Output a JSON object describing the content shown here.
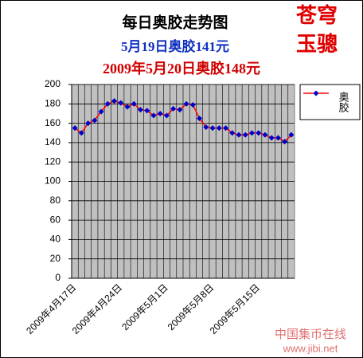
{
  "chart_data": {
    "type": "line",
    "title": "每日奥胶走势图",
    "subtitles": [
      "5月19日奥胶141元",
      "2009年5月20日奥胶148元"
    ],
    "annotations": [
      "苍穹",
      "玉骢"
    ],
    "watermark": [
      "中国集币在线",
      "www.jibi.net"
    ],
    "categories": [
      "2009年4月17日",
      null,
      null,
      null,
      null,
      null,
      null,
      "2009年4月24日",
      null,
      null,
      null,
      null,
      null,
      null,
      "2009年5月1日",
      null,
      null,
      null,
      null,
      null,
      null,
      "2009年5月8日",
      null,
      null,
      null,
      null,
      null,
      null,
      "2009年5月15日",
      null,
      null,
      null,
      null,
      null
    ],
    "series": [
      {
        "name": "奥胶",
        "color": "#ff0000",
        "marker_color": "#0000cc",
        "values": [
          155,
          150,
          160,
          163,
          172,
          180,
          183,
          181,
          177,
          180,
          174,
          173,
          168,
          170,
          168,
          175,
          174,
          180,
          179,
          165,
          156,
          155,
          155,
          155,
          150,
          148,
          148,
          150,
          150,
          148,
          145,
          145,
          141,
          148
        ]
      }
    ],
    "ylim": [
      0,
      200
    ],
    "yticks": [
      0,
      20,
      40,
      60,
      80,
      100,
      120,
      140,
      160,
      180,
      200
    ],
    "grid": true,
    "legend": "right"
  }
}
